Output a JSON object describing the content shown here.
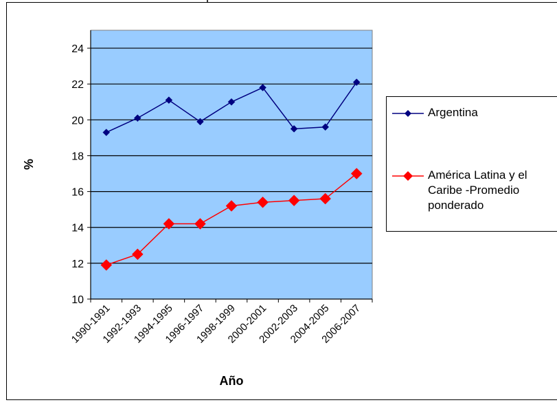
{
  "top_title": "p",
  "colors": {
    "plot_background": "#99ccff",
    "argentina": "#000080",
    "latam": "#ff0000",
    "grid": "#000000"
  },
  "chart_data": {
    "type": "line",
    "categories": [
      "1990-1991",
      "1992-1993",
      "1994-1995",
      "1996-1997",
      "1998-1999",
      "2000-2001",
      "2002-2003",
      "2004-2005",
      "2006-2007"
    ],
    "xlabel": "Año",
    "ylabel": "%",
    "ylim": [
      10,
      25
    ],
    "yticks": [
      10,
      12,
      14,
      16,
      18,
      20,
      22,
      24
    ],
    "grid": true,
    "legend_position": "right",
    "series": [
      {
        "name": "Argentina",
        "values": [
          19.3,
          20.1,
          21.1,
          19.9,
          21.0,
          21.8,
          19.5,
          19.6,
          22.1
        ],
        "marker": "diamond-small"
      },
      {
        "name": "América Latina y el Caribe -Promedio ponderado",
        "values": [
          11.9,
          12.5,
          14.2,
          14.2,
          15.2,
          15.4,
          15.5,
          15.6,
          17.0
        ],
        "marker": "diamond-large"
      }
    ]
  },
  "legend": {
    "items": [
      {
        "lines": [
          "Argentina"
        ]
      },
      {
        "lines": [
          "América Latina y el",
          "Caribe -Promedio",
          "ponderado"
        ]
      }
    ]
  }
}
